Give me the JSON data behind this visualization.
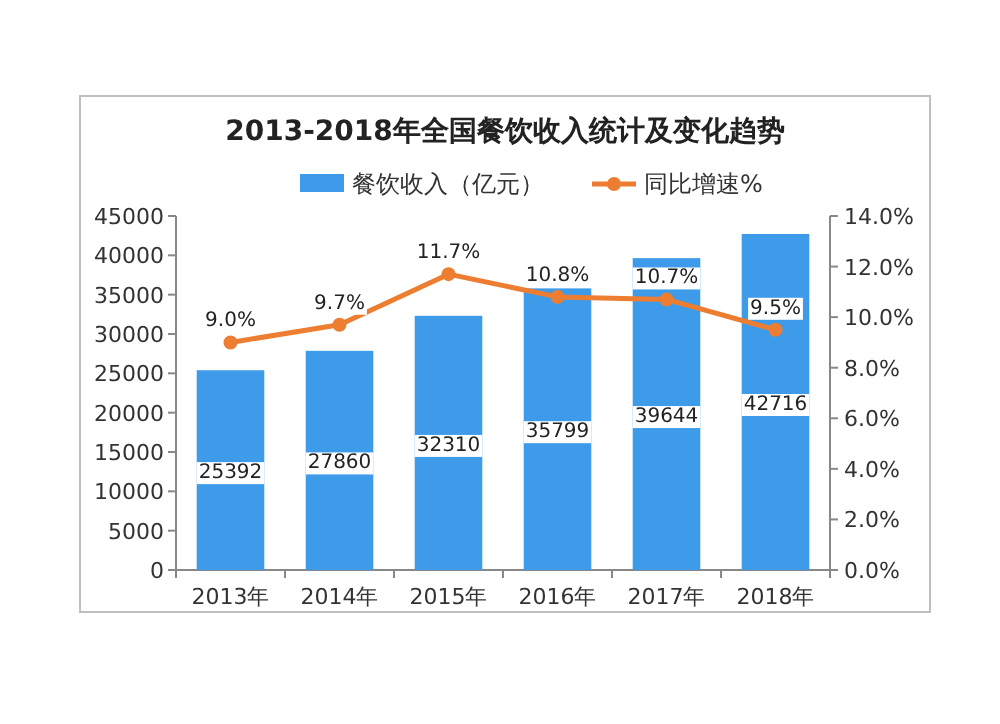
{
  "chart_data": {
    "type": "bar",
    "title": "2013-2018年全国餐饮收入统计及变化趋势",
    "categories": [
      "2013年",
      "2014年",
      "2015年",
      "2016年",
      "2017年",
      "2018年"
    ],
    "series": [
      {
        "name": "餐饮收入（亿元）",
        "color": "#3d9be9",
        "values": [
          25392,
          27860,
          32310,
          35799,
          39644,
          42716
        ],
        "value_labels": [
          "25392",
          "27860",
          "32310",
          "35799",
          "39644",
          "42716"
        ]
      },
      {
        "name": "同比增速%",
        "type": "line",
        "axis": "y2",
        "color": "#ed7d31",
        "marker": "circle",
        "values": [
          9.0,
          9.7,
          11.7,
          10.8,
          10.7,
          9.5
        ],
        "value_labels": [
          "9.0%",
          "9.7%",
          "11.7%",
          "10.8%",
          "10.7%",
          "9.5%"
        ]
      }
    ],
    "ylim": [
      0,
      45000
    ],
    "yticks": [
      0,
      5000,
      10000,
      15000,
      20000,
      25000,
      30000,
      35000,
      40000,
      45000
    ],
    "y2lim": [
      0,
      14
    ],
    "y2ticks": [
      {
        "value": 0,
        "label": "0.0%"
      },
      {
        "value": 2,
        "label": "2.0%"
      },
      {
        "value": 4,
        "label": "4.0%"
      },
      {
        "value": 6,
        "label": "6.0%"
      },
      {
        "value": 8,
        "label": "8.0%"
      },
      {
        "value": 10,
        "label": "10.0%"
      },
      {
        "value": 12,
        "label": "12.0%"
      },
      {
        "value": 14,
        "label": "14.0%"
      }
    ],
    "grid": false,
    "legend": "top"
  }
}
